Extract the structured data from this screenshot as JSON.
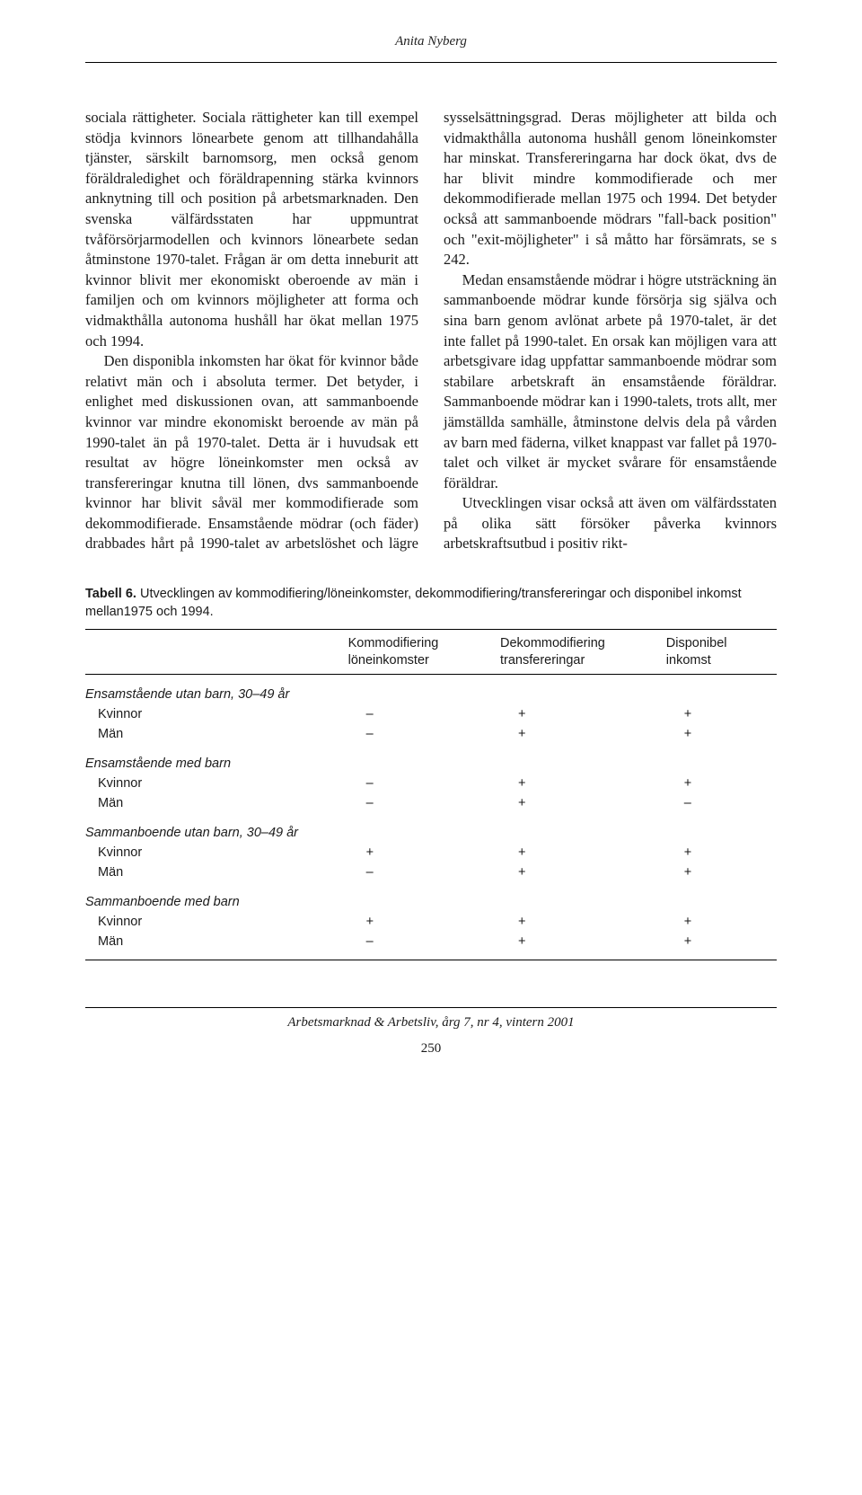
{
  "header": {
    "running_title": "Anita Nyberg"
  },
  "body": {
    "col1_p1": "sociala rättigheter. Sociala rättigheter kan till exempel stödja kvinnors lönearbete genom att tillhandahålla tjänster, särskilt barnomsorg, men också genom föräldraledighet och föräldrapenning stärka kvinnors anknytning till och position på arbetsmarknaden. Den svenska välfärdsstaten har uppmuntrat tvåförsörjarmodellen och kvinnors lönearbete sedan åtminstone 1970-talet. Frågan är om detta inneburit att kvinnor blivit mer ekonomiskt oberoende av män i familjen och om kvinnors möjligheter att forma och vidmakthålla autonoma hushåll har ökat mellan 1975 och 1994.",
    "col1_p2": "Den disponibla inkomsten har ökat för kvinnor både relativt män och i absoluta termer. Det betyder, i enlighet med diskussionen ovan, att sammanboende kvinnor var mindre ekonomiskt beroende av män på 1990-talet än på 1970-talet. Detta är i huvudsak ett resultat av högre löneinkomster men också av transfereringar knutna till lönen, dvs sammanboende kvinnor har blivit såväl mer kommodifierade som dekommodifierade. Ensamstående mödrar (och fäder) drabbades hårt på 1990-talet av arbetslöshet och lägre sysselsättningsgrad. Deras möjligheter att bilda och vidmakthålla autonoma hushåll genom löneinkomster har minskat. Transfereringarna har dock ökat, dvs de har blivit mindre kommodifierade och mer dekommodifierade mellan 1975 och 1994. Det betyder också att sammanboende mödrars \"fall-back position\" och \"exit-möjligheter\" i så måtto har försämrats, se s 242.",
    "col2_p1": "Medan ensamstående mödrar i högre utsträckning än sammanboende mödrar kunde försörja sig själva och sina barn genom avlönat arbete på 1970-talet, är det inte fallet på 1990-talet. En orsak kan möjligen vara att arbetsgivare idag uppfattar sammanboende mödrar som stabilare arbetskraft än ensamstående föräldrar. Sammanboende mödrar kan i 1990-talets, trots allt, mer jämställda samhälle, åtminstone delvis dela på vården av barn med fäderna, vilket knappast var fallet på 1970-talet och vilket är mycket svårare för ensamstående föräldrar.",
    "col2_p2": "Utvecklingen visar också att även om välfärdsstaten på olika sätt försöker påverka kvinnors arbetskraftsutbud i positiv rikt-"
  },
  "table": {
    "caption_label": "Tabell 6.",
    "caption_text": " Utvecklingen av kommodifiering/löneinkomster, dekommodifiering/transfereringar och disponibel inkomst mellan1975 och 1994.",
    "headers": {
      "c1": "",
      "c2a": "Kommodifiering",
      "c2b": "löneinkomster",
      "c3a": "Dekommodifiering",
      "c3b": "transfereringar",
      "c4a": "Disponibel",
      "c4b": "inkomst"
    },
    "groups": [
      {
        "label": "Ensamstående utan barn, 30–49 år",
        "rows": [
          {
            "label": "Kvinnor",
            "v1": "–",
            "v2": "+",
            "v3": "+"
          },
          {
            "label": "Män",
            "v1": "–",
            "v2": "+",
            "v3": "+"
          }
        ]
      },
      {
        "label": "Ensamstående med barn",
        "rows": [
          {
            "label": "Kvinnor",
            "v1": "–",
            "v2": "+",
            "v3": "+"
          },
          {
            "label": "Män",
            "v1": "–",
            "v2": "+",
            "v3": "–"
          }
        ]
      },
      {
        "label": "Sammanboende utan barn, 30–49 år",
        "rows": [
          {
            "label": "Kvinnor",
            "v1": "+",
            "v2": "+",
            "v3": "+"
          },
          {
            "label": "Män",
            "v1": "–",
            "v2": "+",
            "v3": "+"
          }
        ]
      },
      {
        "label": "Sammanboende med barn",
        "rows": [
          {
            "label": "Kvinnor",
            "v1": "+",
            "v2": "+",
            "v3": "+"
          },
          {
            "label": "Män",
            "v1": "–",
            "v2": "+",
            "v3": "+"
          }
        ]
      }
    ]
  },
  "footer": {
    "journal_line": "Arbetsmarknad & Arbetsliv, årg 7, nr 4, vintern 2001",
    "page_number": "250"
  },
  "style": {
    "background": "#ffffff",
    "text_color": "#1a1a1a"
  }
}
